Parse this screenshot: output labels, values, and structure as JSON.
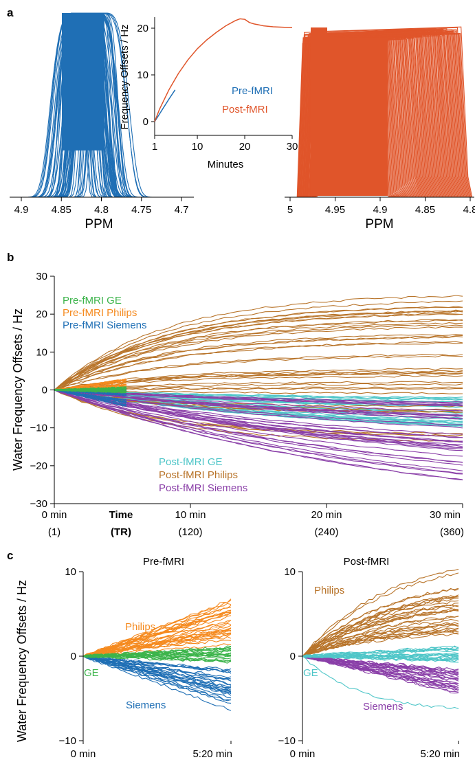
{
  "colors": {
    "pre": "#1f6fb5",
    "post": "#e0552a",
    "ge_pre": "#3cb44b",
    "philips_pre": "#f58a1f",
    "siemens_pre": "#1f6fb5",
    "ge_post": "#4fc6c8",
    "philips_post": "#b8742a",
    "siemens_post": "#8a3fa8"
  },
  "panel_a": {
    "label": "a",
    "left_spectrum": {
      "ticks": [
        "4.9",
        "4.85",
        "4.8",
        "4.75",
        "4.7"
      ],
      "xlabel": "PPM"
    },
    "right_spectrum": {
      "ticks": [
        "5",
        "4.95",
        "4.9",
        "4.85",
        "4.8"
      ],
      "xlabel": "PPM"
    },
    "inset": {
      "ylabel": "Frequency Offsets / Hz",
      "xlabel": "Minutes",
      "yticks": [
        "0",
        "10",
        "20"
      ],
      "xticks": [
        "1",
        "10",
        "20",
        "30"
      ],
      "legend_pre": "Pre-fMRI",
      "legend_post": "Post-fMRI"
    }
  },
  "panel_b": {
    "label": "b",
    "ylabel": "Water Frequency Offsets / Hz",
    "yticks": [
      "30",
      "20",
      "10",
      "0",
      "−10",
      "−20",
      "−30"
    ],
    "xticks_top": [
      "0 min",
      "10 min",
      "20 min",
      "30 min"
    ],
    "xticks_bottom": [
      "(1)",
      "(120)",
      "(240)",
      "(360)"
    ],
    "axis_name_top": "Time",
    "axis_name_bottom": "(TR)",
    "legend_pre": [
      "Pre-fMRI GE",
      "Pre-fMRI Philips",
      "Pre-fMRI Siemens"
    ],
    "legend_post": [
      "Post-fMRI GE",
      "Post-fMRI Philips",
      "Post-fMRI Siemens"
    ]
  },
  "panel_c": {
    "label": "c",
    "ylabel": "Water Frequency Offsets / Hz",
    "left": {
      "title": "Pre-fMRI",
      "yticks": [
        "10",
        "0",
        "−10"
      ],
      "xticks": [
        "0 min",
        "5:20 min"
      ],
      "labels": {
        "philips": "Philips",
        "ge": "GE",
        "siemens": "Siemens"
      }
    },
    "right": {
      "title": "Post-fMRI",
      "yticks": [
        "10",
        "0",
        "−10"
      ],
      "xticks": [
        "0 min",
        "5:20 min"
      ],
      "labels": {
        "philips": "Philips",
        "ge": "GE",
        "siemens": "Siemens"
      }
    }
  },
  "chart_data": [
    {
      "type": "line",
      "panel": "a-inset",
      "xlabel": "Minutes",
      "ylabel": "Frequency Offsets / Hz",
      "xlim": [
        1,
        30
      ],
      "ylim": [
        -2,
        24
      ],
      "series": [
        {
          "name": "Pre-fMRI",
          "x": [
            1,
            2,
            3,
            4,
            5.3
          ],
          "y": [
            0,
            1.6,
            3.2,
            4.8,
            6.8
          ]
        },
        {
          "name": "Post-fMRI",
          "x": [
            1,
            2,
            4,
            6,
            8,
            10,
            12,
            14,
            16,
            18,
            19,
            20,
            21,
            22,
            24,
            26,
            28,
            30
          ],
          "y": [
            0,
            2.6,
            6.8,
            10.3,
            13.2,
            15.6,
            17.5,
            19.1,
            20.5,
            21.6,
            22.0,
            21.9,
            21.2,
            20.9,
            20.5,
            20.3,
            20.2,
            20.1
          ]
        }
      ]
    },
    {
      "type": "line",
      "panel": "b",
      "xlabel": "Time (TR)",
      "ylabel": "Water Frequency Offsets / Hz",
      "xlim": [
        0,
        30
      ],
      "ylim": [
        -30,
        30
      ],
      "series": [
        {
          "name": "Pre-fMRI GE",
          "x": [
            0,
            5.3
          ],
          "y": [
            0,
            0
          ]
        },
        {
          "name": "Pre-fMRI Philips",
          "x": [
            0,
            5.3
          ],
          "y": [
            0,
            3
          ]
        },
        {
          "name": "Pre-fMRI Siemens",
          "x": [
            0,
            5.3
          ],
          "y": [
            0,
            -4.5
          ]
        },
        {
          "name": "Post-fMRI GE",
          "x": [
            0,
            30
          ],
          "y": [
            0,
            -10
          ]
        },
        {
          "name": "Post-fMRI Philips",
          "x": [
            0,
            30
          ],
          "y": [
            0,
            26
          ]
        },
        {
          "name": "Post-fMRI Siemens",
          "x": [
            0,
            30
          ],
          "y": [
            0,
            -24
          ]
        }
      ]
    },
    {
      "type": "line",
      "panel": "c-left",
      "title": "Pre-fMRI",
      "xlim": [
        0,
        5.33
      ],
      "ylim": [
        -10,
        10
      ],
      "series": [
        {
          "name": "Philips",
          "x": [
            0,
            5.33
          ],
          "y": [
            0,
            6.8
          ]
        },
        {
          "name": "GE",
          "x": [
            0,
            5.33
          ],
          "y": [
            0,
            0.5
          ]
        },
        {
          "name": "Siemens",
          "x": [
            0,
            5.33
          ],
          "y": [
            0,
            -6.6
          ]
        }
      ]
    },
    {
      "type": "line",
      "panel": "c-right",
      "title": "Post-fMRI",
      "xlim": [
        0,
        5.33
      ],
      "ylim": [
        -10,
        10
      ],
      "series": [
        {
          "name": "Philips",
          "x": [
            0,
            5.33
          ],
          "y": [
            0,
            11
          ]
        },
        {
          "name": "GE",
          "x": [
            0,
            5.33
          ],
          "y": [
            0,
            -6.2
          ]
        },
        {
          "name": "Siemens",
          "x": [
            0,
            5.33
          ],
          "y": [
            0,
            -4.6
          ]
        }
      ]
    }
  ]
}
